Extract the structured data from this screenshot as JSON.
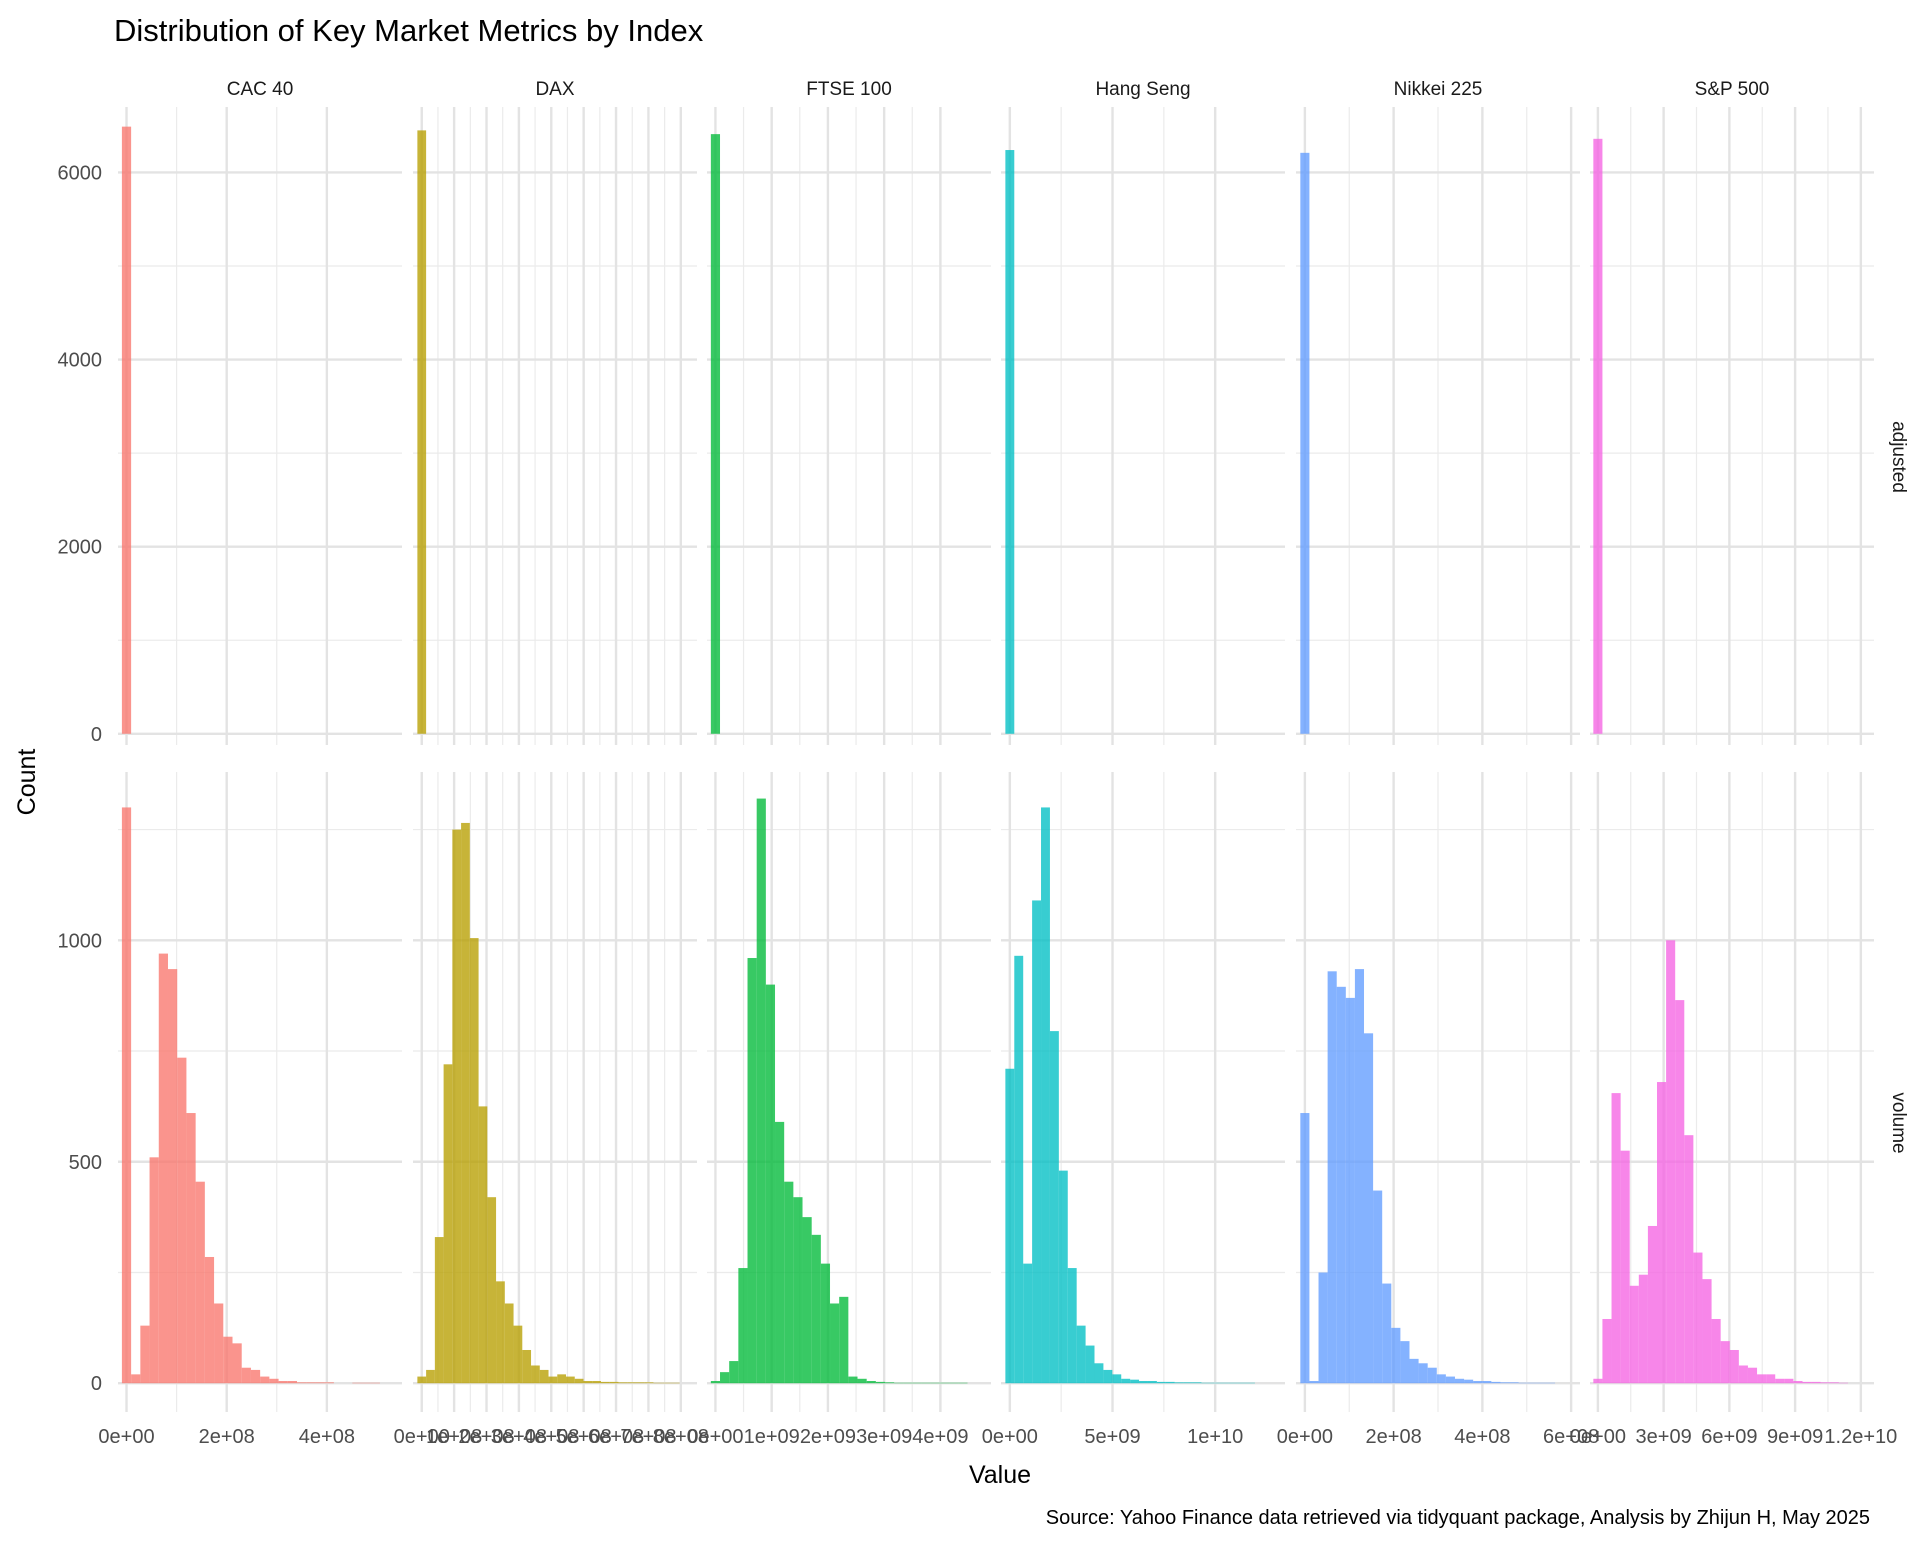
{
  "chart_data": {
    "type": "histogram",
    "title": "Distribution of Key Market Metrics by Index",
    "xlabel": "Value",
    "ylabel": "Count",
    "caption": "Source: Yahoo Finance data retrieved via tidyquant package, Analysis by Zhijun H, May 2025",
    "scales": "free_x",
    "grid": true,
    "legend": "none",
    "bins": 30,
    "indices": [
      {
        "name": "CAC 40",
        "color": "#F8766D",
        "xlim": [
          -17000000.0,
          550000000.0
        ],
        "xticks": [
          0,
          200000000.0,
          400000000.0
        ],
        "xtick_labels": [
          "0e+00",
          "2e+08",
          "4e+08"
        ]
      },
      {
        "name": "DAX",
        "color": "#B79F00",
        "xlim": [
          -27000000.0,
          850000000.0
        ],
        "xticks": [
          0,
          100000000.0,
          200000000.0,
          300000000.0,
          400000000.0,
          500000000.0,
          600000000.0,
          700000000.0,
          800000000.0
        ],
        "xtick_labels": [
          "0e+00",
          "1e+08",
          "2e+08",
          "3e+08",
          "4e+08",
          "5e+08",
          "6e+08",
          "7e+08",
          "8e+08"
        ]
      },
      {
        "name": "FTSE 100",
        "color": "#00BA38",
        "xlim": [
          -150000000.0,
          4900000000.0
        ],
        "xticks": [
          0,
          1000000000.0,
          2000000000.0,
          3000000000.0,
          4000000000.0
        ],
        "xtick_labels": [
          "0e+00",
          "1e+09",
          "2e+09",
          "3e+09",
          "4e+09"
        ]
      },
      {
        "name": "Hang Seng",
        "color": "#00BFC4",
        "xlim": [
          -430000000.0,
          13400000000.0
        ],
        "xticks": [
          0,
          5000000000.0,
          10000000000.0
        ],
        "xtick_labels": [
          "0e+00",
          "5e+09",
          "1e+10"
        ]
      },
      {
        "name": "Nikkei 225",
        "color": "#619CFF",
        "xlim": [
          -20000000.0,
          620000000.0
        ],
        "xticks": [
          0,
          200000000.0,
          400000000.0,
          600000000.0
        ],
        "xtick_labels": [
          "0e+00",
          "2e+08",
          "4e+08",
          "6e+08"
        ]
      },
      {
        "name": "S&P 500",
        "color": "#F564E3",
        "xlim": [
          -360000000.0,
          12600000000.0
        ],
        "xticks": [
          0,
          3000000000.0,
          6000000000.0,
          9000000000.0,
          12000000000.0
        ],
        "xtick_labels": [
          "0e+00",
          "3e+09",
          "6e+09",
          "9e+09",
          "1.2e+10"
        ]
      }
    ],
    "metrics": [
      {
        "name": "adjusted",
        "ylim": [
          -120,
          6700
        ],
        "yticks": [
          0,
          2000,
          4000,
          6000
        ],
        "ytick_labels": [
          "0",
          "2000",
          "4000",
          "6000"
        ],
        "yminor": [
          1000,
          3000,
          5000
        ]
      },
      {
        "name": "volume",
        "ylim": [
          -65,
          1380
        ],
        "yticks": [
          0,
          500,
          1000
        ],
        "ytick_labels": [
          "0",
          "500",
          "1000"
        ],
        "yminor": [
          250,
          750,
          1250
        ]
      }
    ],
    "series": {
      "CAC 40": {
        "adjusted": {
          "binwidth": 18400000.0,
          "bins": [
            {
              "x": 0,
              "count": 6490
            }
          ]
        },
        "volume": {
          "binwidth": 18400000.0,
          "counts": [
            1300,
            20,
            130,
            510,
            970,
            935,
            735,
            610,
            455,
            285,
            180,
            105,
            90,
            35,
            30,
            15,
            10,
            5,
            5,
            2,
            2,
            2,
            2,
            0,
            0,
            1,
            1,
            1,
            0,
            0
          ]
        }
      },
      "DAX": {
        "adjusted": {
          "binwidth": 27000000.0,
          "bins": [
            {
              "x": 0,
              "count": 6450
            }
          ]
        },
        "volume": {
          "binwidth": 27000000.0,
          "counts": [
            15,
            30,
            330,
            720,
            1250,
            1265,
            1005,
            625,
            420,
            230,
            180,
            130,
            75,
            40,
            30,
            15,
            20,
            15,
            10,
            5,
            5,
            3,
            3,
            2,
            2,
            2,
            2,
            1,
            1,
            1
          ]
        }
      },
      "FTSE 100": {
        "adjusted": {
          "binwidth": 163000000.0,
          "bins": [
            {
              "x": 0,
              "count": 6410
            }
          ]
        },
        "volume": {
          "binwidth": 163000000.0,
          "counts": [
            5,
            25,
            50,
            260,
            960,
            1320,
            900,
            590,
            455,
            420,
            375,
            335,
            270,
            180,
            195,
            15,
            10,
            5,
            3,
            2,
            1,
            1,
            1,
            1,
            1,
            1,
            1,
            1,
            0,
            0
          ]
        }
      },
      "Hang Seng": {
        "adjusted": {
          "binwidth": 434000000.0,
          "bins": [
            {
              "x": 0,
              "count": 6240
            }
          ]
        },
        "volume": {
          "binwidth": 434000000.0,
          "counts": [
            710,
            965,
            270,
            1090,
            1300,
            795,
            480,
            260,
            130,
            85,
            45,
            30,
            20,
            10,
            8,
            5,
            5,
            3,
            3,
            2,
            2,
            2,
            1,
            1,
            1,
            1,
            1,
            1,
            0,
            0
          ]
        }
      },
      "Nikkei 225": {
        "adjusted": {
          "binwidth": 20500000.0,
          "bins": [
            {
              "x": 0,
              "count": 6210
            }
          ]
        },
        "volume": {
          "binwidth": 20500000.0,
          "counts": [
            610,
            5,
            250,
            930,
            895,
            870,
            935,
            790,
            435,
            225,
            125,
            95,
            55,
            45,
            35,
            20,
            15,
            10,
            8,
            5,
            5,
            3,
            2,
            2,
            1,
            1,
            1,
            1,
            0,
            0
          ]
        }
      },
      "S&P 500": {
        "adjusted": {
          "binwidth": 415000000.0,
          "bins": [
            {
              "x": 0,
              "count": 6360
            }
          ]
        },
        "volume": {
          "binwidth": 415000000.0,
          "counts": [
            10,
            145,
            655,
            525,
            220,
            245,
            355,
            680,
            1000,
            865,
            560,
            295,
            235,
            145,
            95,
            75,
            40,
            35,
            20,
            20,
            10,
            10,
            5,
            3,
            3,
            2,
            2,
            1,
            0,
            0
          ]
        }
      }
    }
  }
}
